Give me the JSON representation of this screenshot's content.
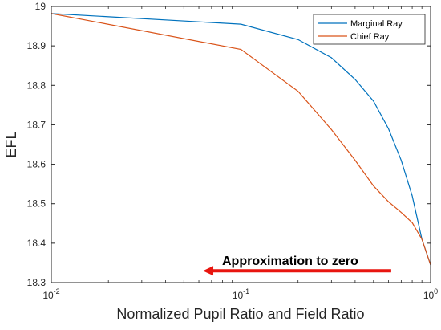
{
  "chart_data": {
    "type": "line",
    "xlabel": "Normalized Pupil Ratio and Field Ratio",
    "ylabel": "EFL",
    "xscale": "log",
    "xlim": [
      0.01,
      1
    ],
    "ylim": [
      18.3,
      19
    ],
    "x_ticks": [
      0.01,
      0.1,
      1
    ],
    "x_tick_labels": [
      {
        "base": "10",
        "exp": "-2"
      },
      {
        "base": "10",
        "exp": "-1"
      },
      {
        "base": "10",
        "exp": "0"
      }
    ],
    "y_ticks": [
      18.3,
      18.4,
      18.5,
      18.6,
      18.7,
      18.8,
      18.9,
      19
    ],
    "y_tick_labels": [
      "18.3",
      "18.4",
      "18.5",
      "18.6",
      "18.7",
      "18.8",
      "18.9",
      "19"
    ],
    "grid": false,
    "legend_position": "top-right",
    "series": [
      {
        "name": "Marginal Ray",
        "color": "#0072BD",
        "x": [
          0.01,
          0.1,
          0.2,
          0.3,
          0.4,
          0.5,
          0.6,
          0.7,
          0.8,
          0.9,
          1.0
        ],
        "y": [
          18.982,
          18.955,
          18.916,
          18.87,
          18.815,
          18.76,
          18.69,
          18.61,
          18.52,
          18.41,
          18.345
        ]
      },
      {
        "name": "Chief Ray",
        "color": "#D95319",
        "x": [
          0.01,
          0.1,
          0.2,
          0.3,
          0.4,
          0.5,
          0.6,
          0.7,
          0.8,
          0.9,
          1.0
        ],
        "y": [
          18.982,
          18.891,
          18.785,
          18.688,
          18.61,
          18.545,
          18.505,
          18.478,
          18.452,
          18.41,
          18.345
        ]
      }
    ],
    "annotation": {
      "text": "Approximation to zero",
      "arrow_color": "#E8150F",
      "arrow_direction": "left",
      "arrow_x_from": 0.62,
      "arrow_x_to": 0.063,
      "y": 18.33
    }
  }
}
